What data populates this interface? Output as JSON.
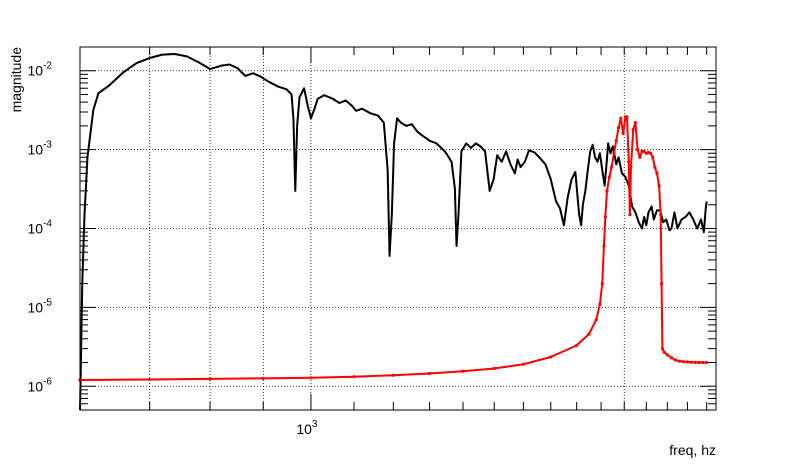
{
  "chart_data": {
    "type": "line",
    "title": "",
    "xlabel": "freq, hz",
    "ylabel": "magnitude",
    "x_scale": "log",
    "y_scale": "log",
    "xlim": [
      600,
      2450
    ],
    "ylim": [
      5e-07,
      0.02
    ],
    "grid": true,
    "legend": "none",
    "x_tick_labels": [
      {
        "value": 1000,
        "base": "10",
        "exp": "3"
      }
    ],
    "y_tick_labels": [
      {
        "value": 1e-06,
        "base": "10",
        "exp": "-6"
      },
      {
        "value": 1e-05,
        "base": "10",
        "exp": "-5"
      },
      {
        "value": 0.0001,
        "base": "10",
        "exp": "-4"
      },
      {
        "value": 0.001,
        "base": "10",
        "exp": "-3"
      },
      {
        "value": 0.01,
        "base": "10",
        "exp": "-2"
      }
    ],
    "series": [
      {
        "color": "#000000",
        "markers": false,
        "points": [
          [
            600,
            5e-07
          ],
          [
            601,
            1.5e-06
          ],
          [
            603,
            2e-05
          ],
          [
            606,
            0.00015
          ],
          [
            610,
            0.0008
          ],
          [
            618,
            0.0032
          ],
          [
            625,
            0.0052
          ],
          [
            640,
            0.0065
          ],
          [
            660,
            0.0095
          ],
          [
            680,
            0.0125
          ],
          [
            700,
            0.0145
          ],
          [
            720,
            0.016
          ],
          [
            740,
            0.0163
          ],
          [
            760,
            0.0152
          ],
          [
            780,
            0.0128
          ],
          [
            800,
            0.0105
          ],
          [
            820,
            0.0116
          ],
          [
            835,
            0.012
          ],
          [
            850,
            0.0108
          ],
          [
            865,
            0.0086
          ],
          [
            880,
            0.0093
          ],
          [
            895,
            0.0084
          ],
          [
            910,
            0.0073
          ],
          [
            930,
            0.0063
          ],
          [
            948,
            0.0058
          ],
          [
            958,
            0.005
          ],
          [
            962,
            0.0025
          ],
          [
            966,
            0.0003
          ],
          [
            970,
            0.002
          ],
          [
            975,
            0.0046
          ],
          [
            985,
            0.006
          ],
          [
            993,
            0.0036
          ],
          [
            1000,
            0.0025
          ],
          [
            1008,
            0.0033
          ],
          [
            1015,
            0.0044
          ],
          [
            1030,
            0.0049
          ],
          [
            1050,
            0.0044
          ],
          [
            1065,
            0.0039
          ],
          [
            1080,
            0.0042
          ],
          [
            1095,
            0.0036
          ],
          [
            1105,
            0.0031
          ],
          [
            1120,
            0.0033
          ],
          [
            1140,
            0.0029
          ],
          [
            1160,
            0.0027
          ],
          [
            1175,
            0.0022
          ],
          [
            1185,
            0.00055
          ],
          [
            1190,
            4.5e-05
          ],
          [
            1196,
            0.00015
          ],
          [
            1202,
            0.0012
          ],
          [
            1210,
            0.0025
          ],
          [
            1220,
            0.0022
          ],
          [
            1235,
            0.002
          ],
          [
            1250,
            0.0021
          ],
          [
            1265,
            0.0017
          ],
          [
            1280,
            0.0015
          ],
          [
            1300,
            0.0013
          ],
          [
            1320,
            0.0012
          ],
          [
            1345,
            0.00095
          ],
          [
            1365,
            0.0007
          ],
          [
            1375,
            0.00032
          ],
          [
            1380,
            6e-05
          ],
          [
            1386,
            0.00015
          ],
          [
            1395,
            0.00095
          ],
          [
            1410,
            0.0012
          ],
          [
            1425,
            0.00105
          ],
          [
            1440,
            0.0012
          ],
          [
            1455,
            0.0011
          ],
          [
            1470,
            0.00095
          ],
          [
            1485,
            0.0003
          ],
          [
            1498,
            0.00042
          ],
          [
            1510,
            0.00085
          ],
          [
            1525,
            0.0007
          ],
          [
            1540,
            0.00095
          ],
          [
            1555,
            0.00065
          ],
          [
            1570,
            0.0005
          ],
          [
            1580,
            0.00075
          ],
          [
            1590,
            0.0006
          ],
          [
            1605,
            0.0007
          ],
          [
            1620,
            0.00098
          ],
          [
            1640,
            0.00092
          ],
          [
            1660,
            0.00078
          ],
          [
            1680,
            0.00065
          ],
          [
            1700,
            0.00042
          ],
          [
            1720,
            0.00022
          ],
          [
            1735,
            0.00018
          ],
          [
            1750,
            0.00011
          ],
          [
            1765,
            0.00025
          ],
          [
            1780,
            0.00042
          ],
          [
            1795,
            0.00052
          ],
          [
            1810,
            0.00015
          ],
          [
            1818,
            0.00011
          ],
          [
            1825,
            0.0002
          ],
          [
            1835,
            0.0003
          ],
          [
            1845,
            0.00055
          ],
          [
            1855,
            0.00095
          ],
          [
            1865,
            0.00115
          ],
          [
            1875,
            0.0008
          ],
          [
            1885,
            0.0007
          ],
          [
            1895,
            0.0009
          ],
          [
            1905,
            0.00055
          ],
          [
            1915,
            0.00035
          ],
          [
            1922,
            0.0006
          ],
          [
            1930,
            0.0012
          ],
          [
            1940,
            0.0009
          ],
          [
            1950,
            0.0011
          ],
          [
            1965,
            0.00065
          ],
          [
            1975,
            0.0008
          ],
          [
            1990,
            0.0005
          ],
          [
            2005,
            0.00045
          ],
          [
            2020,
            0.00035
          ],
          [
            2035,
            0.00019
          ],
          [
            2050,
            0.00016
          ],
          [
            2065,
            0.00012
          ],
          [
            2080,
            0.0001
          ],
          [
            2090,
            0.00014
          ],
          [
            2100,
            0.00011
          ],
          [
            2110,
            0.00016
          ],
          [
            2125,
            0.00019
          ],
          [
            2135,
            0.00013
          ],
          [
            2150,
            0.00017
          ],
          [
            2165,
            0.00017
          ],
          [
            2180,
            0.00012
          ],
          [
            2195,
            0.00013
          ],
          [
            2210,
            9.5e-05
          ],
          [
            2220,
            0.0001
          ],
          [
            2235,
            0.00016
          ],
          [
            2250,
            0.0001
          ],
          [
            2270,
            0.00013
          ],
          [
            2290,
            0.00014
          ],
          [
            2310,
            0.00016
          ],
          [
            2330,
            0.00013
          ],
          [
            2350,
            0.0001
          ],
          [
            2370,
            0.00013
          ],
          [
            2385,
            9e-05
          ],
          [
            2395,
            0.00018
          ],
          [
            2400,
            0.00022
          ]
        ]
      },
      {
        "color": "#ff0000",
        "markers": true,
        "points": [
          [
            600,
            1.2e-06
          ],
          [
            700,
            1.22e-06
          ],
          [
            800,
            1.24e-06
          ],
          [
            900,
            1.26e-06
          ],
          [
            1000,
            1.28e-06
          ],
          [
            1100,
            1.32e-06
          ],
          [
            1200,
            1.38e-06
          ],
          [
            1300,
            1.45e-06
          ],
          [
            1400,
            1.55e-06
          ],
          [
            1500,
            1.68e-06
          ],
          [
            1600,
            1.9e-06
          ],
          [
            1700,
            2.35e-06
          ],
          [
            1800,
            3.3e-06
          ],
          [
            1850,
            4.6e-06
          ],
          [
            1880,
            7e-06
          ],
          [
            1895,
            1.1e-05
          ],
          [
            1905,
            2e-05
          ],
          [
            1912,
            6e-05
          ],
          [
            1918,
            0.00014
          ],
          [
            1925,
            0.0003
          ],
          [
            1935,
            0.00045
          ],
          [
            1945,
            0.0006
          ],
          [
            1955,
            0.0009
          ],
          [
            1965,
            0.0013
          ],
          [
            1975,
            0.0019
          ],
          [
            1985,
            0.0025
          ],
          [
            1995,
            0.0016
          ],
          [
            2005,
            0.0026
          ],
          [
            2012,
            0.0026
          ],
          [
            2020,
            0.0007
          ],
          [
            2025,
            0.00015
          ],
          [
            2030,
            0.0006
          ],
          [
            2040,
            0.0018
          ],
          [
            2050,
            0.0022
          ],
          [
            2060,
            0.001
          ],
          [
            2070,
            0.0008
          ],
          [
            2080,
            0.00095
          ],
          [
            2090,
            0.00095
          ],
          [
            2100,
            0.0009
          ],
          [
            2110,
            0.00092
          ],
          [
            2120,
            0.0009
          ],
          [
            2130,
            0.0008
          ],
          [
            2140,
            0.0006
          ],
          [
            2150,
            0.0005
          ],
          [
            2160,
            0.00035
          ],
          [
            2168,
            0.00015
          ],
          [
            2172,
            2e-05
          ],
          [
            2176,
            3e-06
          ],
          [
            2185,
            2.7e-06
          ],
          [
            2200,
            2.5e-06
          ],
          [
            2220,
            2.3e-06
          ],
          [
            2240,
            2.15e-06
          ],
          [
            2260,
            2.08e-06
          ],
          [
            2280,
            2.05e-06
          ],
          [
            2300,
            2.03e-06
          ],
          [
            2320,
            2.02e-06
          ],
          [
            2340,
            2.01e-06
          ],
          [
            2360,
            2e-06
          ],
          [
            2380,
            2e-06
          ],
          [
            2400,
            2e-06
          ]
        ]
      }
    ]
  }
}
